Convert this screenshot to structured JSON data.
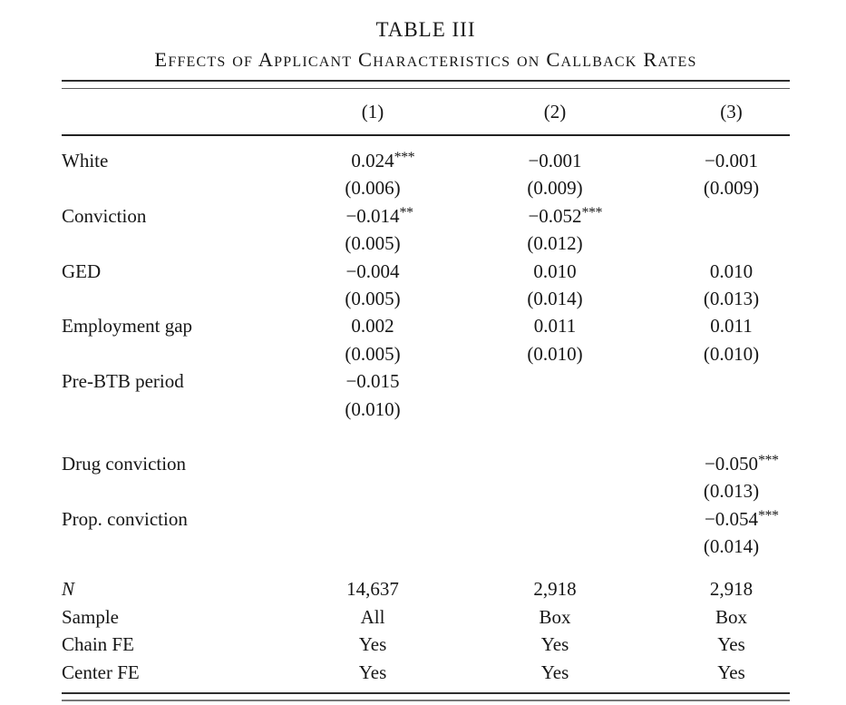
{
  "title": "TABLE III",
  "subtitle": "Effects of Applicant Characteristics on Callback Rates",
  "columns": [
    "(1)",
    "(2)",
    "(3)"
  ],
  "coef": [
    {
      "label": "White",
      "cells": [
        {
          "est": "0.024",
          "stars": "***",
          "se": "(0.006)"
        },
        {
          "est": "−0.001",
          "stars": "",
          "se": "(0.009)"
        },
        {
          "est": "−0.001",
          "stars": "",
          "se": "(0.009)"
        }
      ]
    },
    {
      "label": "Conviction",
      "cells": [
        {
          "est": "−0.014",
          "stars": "**",
          "se": "(0.005)"
        },
        {
          "est": "−0.052",
          "stars": "***",
          "se": "(0.012)"
        },
        {
          "est": "",
          "stars": "",
          "se": ""
        }
      ]
    },
    {
      "label": "GED",
      "cells": [
        {
          "est": "−0.004",
          "stars": "",
          "se": "(0.005)"
        },
        {
          "est": "0.010",
          "stars": "",
          "se": "(0.014)"
        },
        {
          "est": "0.010",
          "stars": "",
          "se": "(0.013)"
        }
      ]
    },
    {
      "label": "Employment gap",
      "cells": [
        {
          "est": "0.002",
          "stars": "",
          "se": "(0.005)"
        },
        {
          "est": "0.011",
          "stars": "",
          "se": "(0.010)"
        },
        {
          "est": "0.011",
          "stars": "",
          "se": "(0.010)"
        }
      ]
    },
    {
      "label": "Pre-BTB period",
      "cells": [
        {
          "est": "−0.015",
          "stars": "",
          "se": "(0.010)"
        },
        {
          "est": "",
          "stars": "",
          "se": ""
        },
        {
          "est": "",
          "stars": "",
          "se": ""
        }
      ]
    },
    {
      "label": "Drug conviction",
      "cells": [
        {
          "est": "",
          "stars": "",
          "se": ""
        },
        {
          "est": "",
          "stars": "",
          "se": ""
        },
        {
          "est": "−0.050",
          "stars": "***",
          "se": "(0.013)"
        }
      ]
    },
    {
      "label": "Prop. conviction",
      "cells": [
        {
          "est": "",
          "stars": "",
          "se": ""
        },
        {
          "est": "",
          "stars": "",
          "se": ""
        },
        {
          "est": "−0.054",
          "stars": "***",
          "se": "(0.014)"
        }
      ]
    }
  ],
  "stats": [
    {
      "label": "N",
      "values": [
        "14,637",
        "2,918",
        "2,918"
      ]
    },
    {
      "label": "Sample",
      "values": [
        "All",
        "Box",
        "Box"
      ]
    },
    {
      "label": "Chain FE",
      "values": [
        "Yes",
        "Yes",
        "Yes"
      ]
    },
    {
      "label": "Center FE",
      "values": [
        "Yes",
        "Yes",
        "Yes"
      ]
    }
  ]
}
